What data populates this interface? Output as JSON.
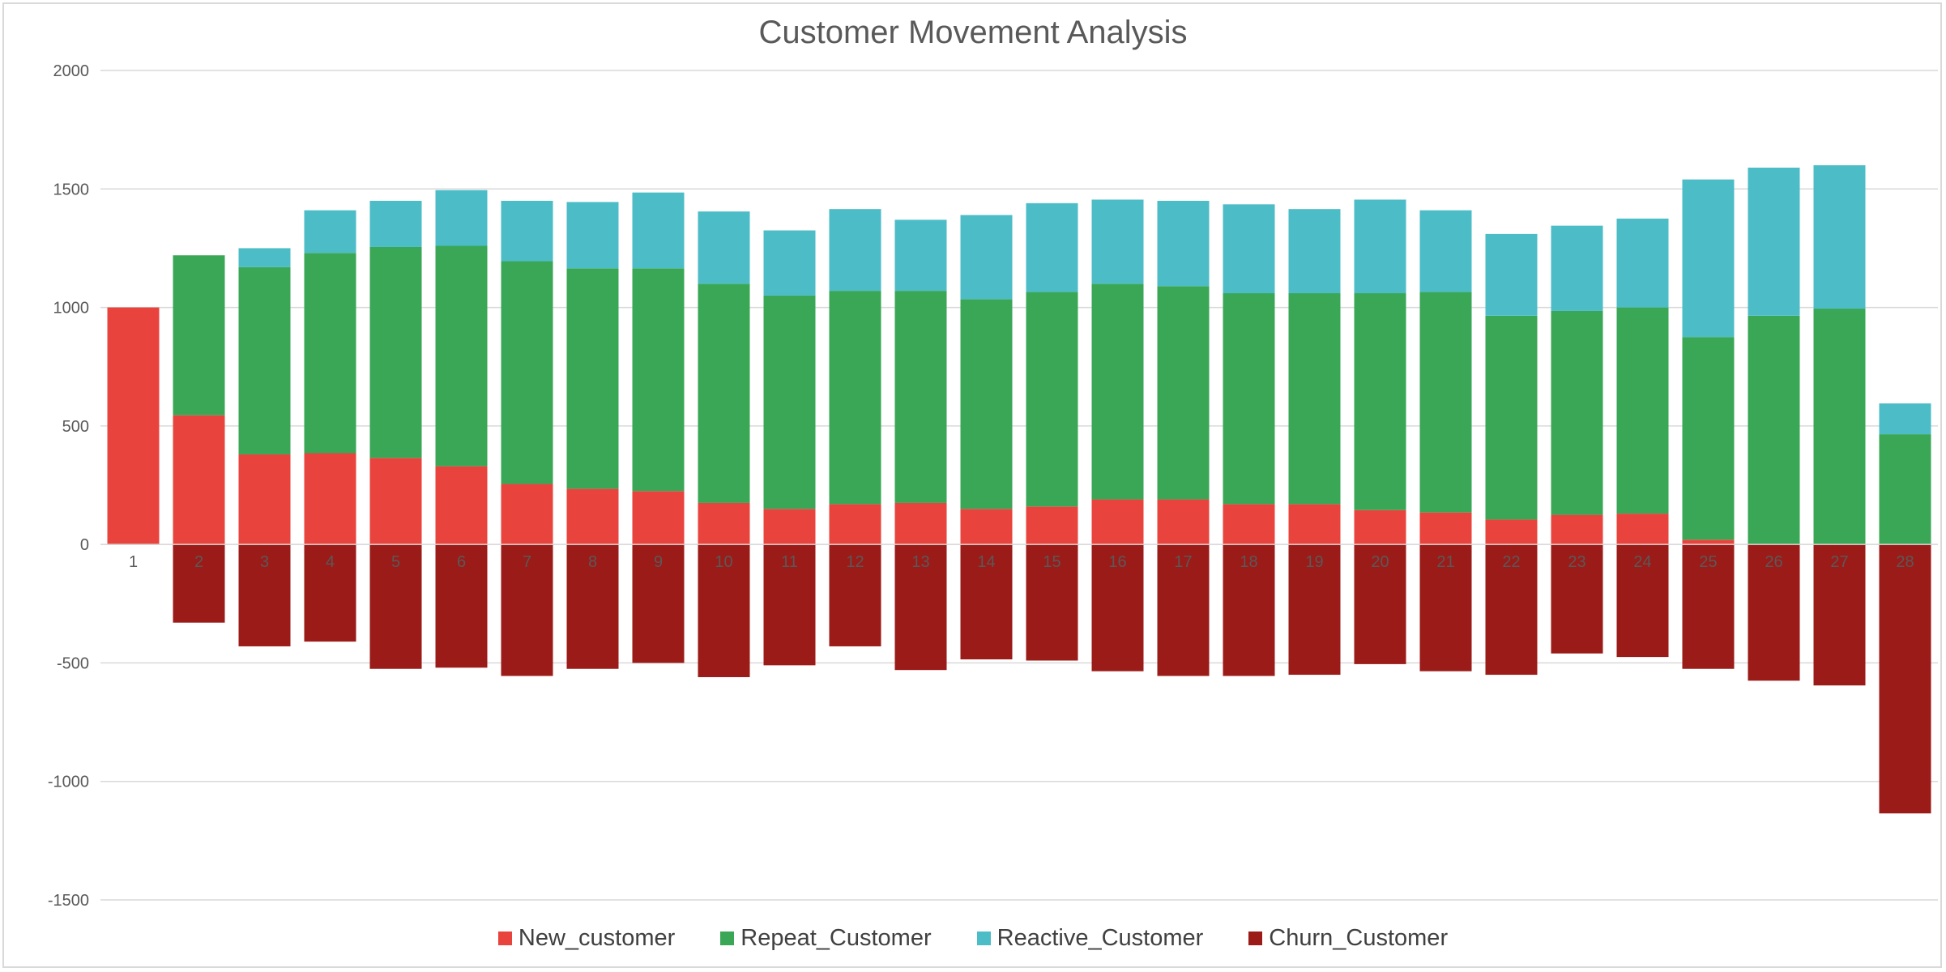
{
  "chart_data": {
    "type": "bar",
    "stacked": true,
    "title": "Customer Movement Analysis",
    "xlabel": "",
    "ylabel": "",
    "categories": [
      "1",
      "2",
      "3",
      "4",
      "5",
      "6",
      "7",
      "8",
      "9",
      "10",
      "11",
      "12",
      "13",
      "14",
      "15",
      "16",
      "17",
      "18",
      "19",
      "20",
      "21",
      "22",
      "23",
      "24",
      "25",
      "26",
      "27",
      "28"
    ],
    "y_ticks": [
      "2000",
      "1500",
      "1000",
      "500",
      "0",
      "-500",
      "-1000",
      "-1500"
    ],
    "ylim": [
      -1500,
      2000
    ],
    "grid": true,
    "legend_position": "bottom",
    "series": [
      {
        "name": "New_customer",
        "color": "#e8443d",
        "values": [
          1000,
          545,
          380,
          385,
          365,
          330,
          255,
          235,
          225,
          175,
          150,
          170,
          175,
          150,
          160,
          190,
          190,
          170,
          170,
          145,
          135,
          105,
          125,
          130,
          20,
          0,
          0,
          0
        ]
      },
      {
        "name": "Repeat_Customer",
        "color": "#3aa756",
        "values": [
          0,
          675,
          790,
          845,
          890,
          930,
          940,
          930,
          940,
          925,
          900,
          900,
          895,
          885,
          905,
          910,
          900,
          890,
          890,
          915,
          930,
          860,
          860,
          870,
          855,
          965,
          995,
          465
        ]
      },
      {
        "name": "Reactive_Customer",
        "color": "#4cbcc7",
        "values": [
          0,
          0,
          80,
          180,
          195,
          235,
          255,
          280,
          320,
          305,
          275,
          345,
          300,
          355,
          375,
          355,
          360,
          375,
          355,
          395,
          345,
          345,
          360,
          375,
          665,
          625,
          605,
          130
        ]
      },
      {
        "name": "Churn_Customer",
        "color": "#9b1b18",
        "values": [
          0,
          -330,
          -430,
          -410,
          -525,
          -520,
          -555,
          -525,
          -500,
          -560,
          -510,
          -430,
          -530,
          -485,
          -490,
          -535,
          -555,
          -555,
          -550,
          -505,
          -535,
          -550,
          -460,
          -475,
          -525,
          -575,
          -595,
          -1135
        ]
      }
    ]
  }
}
